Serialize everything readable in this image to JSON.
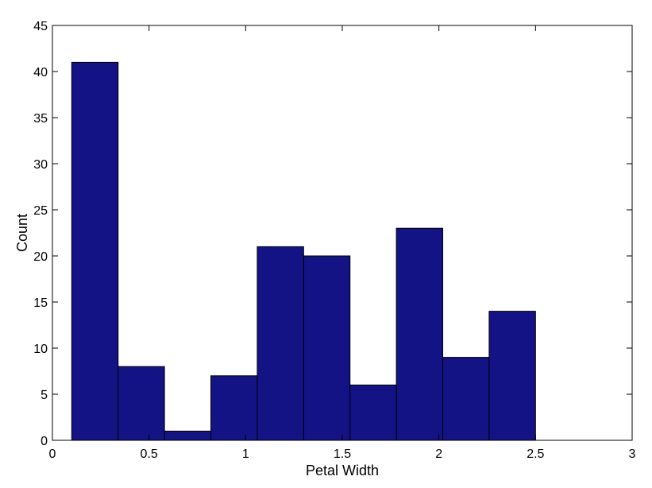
{
  "chart_data": {
    "type": "bar",
    "histogram": true,
    "bin_edges": [
      0.1,
      0.34,
      0.58,
      0.82,
      1.06,
      1.3,
      1.54,
      1.78,
      2.02,
      2.26,
      2.5
    ],
    "values": [
      41,
      8,
      1,
      7,
      21,
      20,
      6,
      23,
      9,
      14
    ],
    "title": "",
    "xlabel": "Petal Width",
    "ylabel": "Count",
    "xlim": [
      0,
      3
    ],
    "ylim": [
      0,
      45
    ],
    "x_ticks": [
      0,
      0.5,
      1,
      1.5,
      2,
      2.5,
      3
    ],
    "x_tick_labels": [
      "0",
      "0.5",
      "1",
      "1.5",
      "2",
      "2.5",
      "3"
    ],
    "y_ticks": [
      0,
      5,
      10,
      15,
      20,
      25,
      30,
      35,
      40,
      45
    ],
    "y_tick_labels": [
      "0",
      "5",
      "10",
      "15",
      "20",
      "25",
      "30",
      "35",
      "40",
      "45"
    ],
    "grid": false,
    "legend": "none",
    "colors": {
      "bar_fill": "#131385",
      "bar_edge": "#000000",
      "axis": "#000000"
    }
  }
}
